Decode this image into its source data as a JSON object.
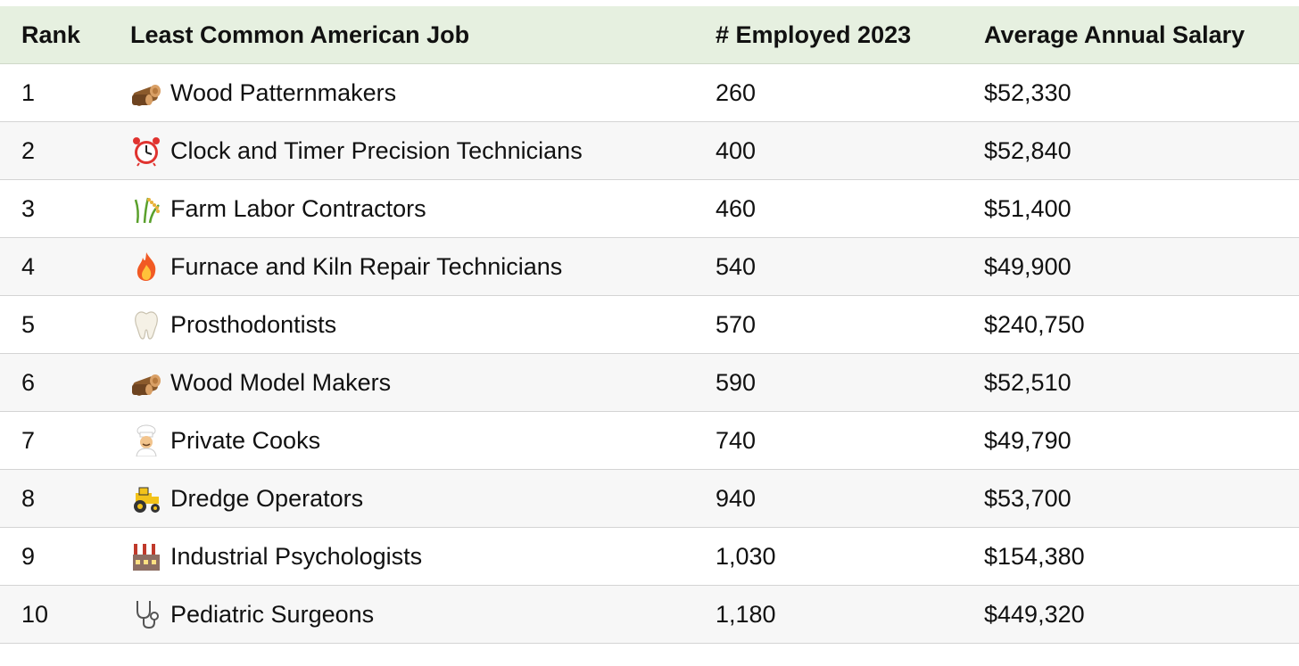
{
  "chart_data": {
    "type": "table",
    "columns": [
      "Rank",
      "Least Common American Job",
      "# Employed 2023",
      "Average Annual Salary"
    ],
    "rows": [
      {
        "rank": "1",
        "icon": "wood-icon",
        "job": "Wood Patternmakers",
        "employed": "260",
        "salary": "$52,330"
      },
      {
        "rank": "2",
        "icon": "alarm-clock-icon",
        "job": "Clock and Timer Precision Technicians",
        "employed": "400",
        "salary": "$52,840"
      },
      {
        "rank": "3",
        "icon": "rice-plant-icon",
        "job": "Farm Labor Contractors",
        "employed": "460",
        "salary": "$51,400"
      },
      {
        "rank": "4",
        "icon": "fire-icon",
        "job": "Furnace and Kiln Repair Technicians",
        "employed": "540",
        "salary": "$49,900"
      },
      {
        "rank": "5",
        "icon": "tooth-icon",
        "job": "Prosthodontists",
        "employed": "570",
        "salary": "$240,750"
      },
      {
        "rank": "6",
        "icon": "wood-icon",
        "job": "Wood Model Makers",
        "employed": "590",
        "salary": "$52,510"
      },
      {
        "rank": "7",
        "icon": "cook-icon",
        "job": "Private Cooks",
        "employed": "740",
        "salary": "$49,790"
      },
      {
        "rank": "8",
        "icon": "tractor-icon",
        "job": "Dredge Operators",
        "employed": "940",
        "salary": "$53,700"
      },
      {
        "rank": "9",
        "icon": "factory-icon",
        "job": "Industrial Psychologists",
        "employed": "1,030",
        "salary": "$154,380"
      },
      {
        "rank": "10",
        "icon": "stethoscope-icon",
        "job": "Pediatric Surgeons",
        "employed": "1,180",
        "salary": "$449,320"
      }
    ]
  },
  "colors": {
    "header_bg": "#e6f0e0",
    "alt_row_bg": "#f7f7f7",
    "row_border": "#d4d4d4"
  }
}
